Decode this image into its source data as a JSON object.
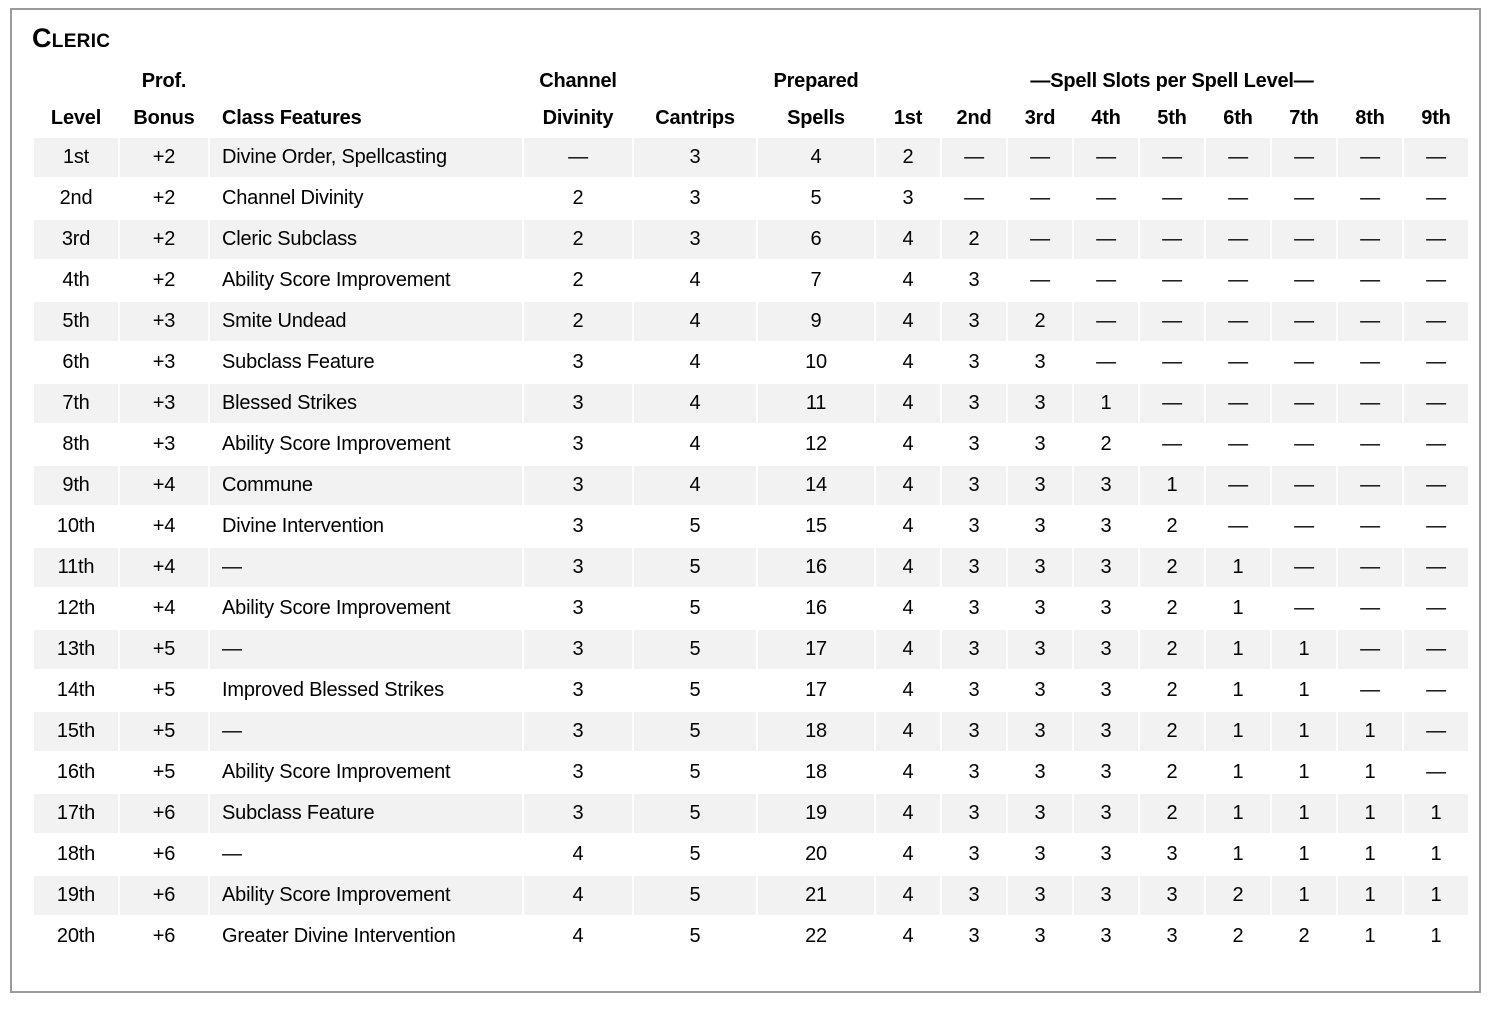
{
  "page": {
    "title": "Cleric"
  },
  "colors": {
    "stripe": "#f2f2f2",
    "frame_border": "#9b9b9b",
    "text": "#000000",
    "background": "#ffffff"
  },
  "table": {
    "header_row1": {
      "prof": "Prof.",
      "channel": "Channel",
      "prepared": "Prepared",
      "spell_slots_span": "—Spell Slots per Spell Level—"
    },
    "header_row2": [
      "Level",
      "Bonus",
      "Class Features",
      "Divinity",
      "Cantrips",
      "Spells",
      "1st",
      "2nd",
      "3rd",
      "4th",
      "5th",
      "6th",
      "7th",
      "8th",
      "9th"
    ],
    "rows": [
      [
        "1st",
        "+2",
        "Divine Order, Spellcasting",
        "—",
        "3",
        "4",
        "2",
        "—",
        "—",
        "—",
        "—",
        "—",
        "—",
        "—",
        "—"
      ],
      [
        "2nd",
        "+2",
        "Channel Divinity",
        "2",
        "3",
        "5",
        "3",
        "—",
        "—",
        "—",
        "—",
        "—",
        "—",
        "—",
        "—"
      ],
      [
        "3rd",
        "+2",
        "Cleric Subclass",
        "2",
        "3",
        "6",
        "4",
        "2",
        "—",
        "—",
        "—",
        "—",
        "—",
        "—",
        "—"
      ],
      [
        "4th",
        "+2",
        "Ability Score Improvement",
        "2",
        "4",
        "7",
        "4",
        "3",
        "—",
        "—",
        "—",
        "—",
        "—",
        "—",
        "—"
      ],
      [
        "5th",
        "+3",
        "Smite Undead",
        "2",
        "4",
        "9",
        "4",
        "3",
        "2",
        "—",
        "—",
        "—",
        "—",
        "—",
        "—"
      ],
      [
        "6th",
        "+3",
        "Subclass Feature",
        "3",
        "4",
        "10",
        "4",
        "3",
        "3",
        "—",
        "—",
        "—",
        "—",
        "—",
        "—"
      ],
      [
        "7th",
        "+3",
        "Blessed Strikes",
        "3",
        "4",
        "11",
        "4",
        "3",
        "3",
        "1",
        "—",
        "—",
        "—",
        "—",
        "—"
      ],
      [
        "8th",
        "+3",
        "Ability Score Improvement",
        "3",
        "4",
        "12",
        "4",
        "3",
        "3",
        "2",
        "—",
        "—",
        "—",
        "—",
        "—"
      ],
      [
        "9th",
        "+4",
        "Commune",
        "3",
        "4",
        "14",
        "4",
        "3",
        "3",
        "3",
        "1",
        "—",
        "—",
        "—",
        "—"
      ],
      [
        "10th",
        "+4",
        "Divine Intervention",
        "3",
        "5",
        "15",
        "4",
        "3",
        "3",
        "3",
        "2",
        "—",
        "—",
        "—",
        "—"
      ],
      [
        "11th",
        "+4",
        "—",
        "3",
        "5",
        "16",
        "4",
        "3",
        "3",
        "3",
        "2",
        "1",
        "—",
        "—",
        "—"
      ],
      [
        "12th",
        "+4",
        "Ability Score Improvement",
        "3",
        "5",
        "16",
        "4",
        "3",
        "3",
        "3",
        "2",
        "1",
        "—",
        "—",
        "—"
      ],
      [
        "13th",
        "+5",
        "—",
        "3",
        "5",
        "17",
        "4",
        "3",
        "3",
        "3",
        "2",
        "1",
        "1",
        "—",
        "—"
      ],
      [
        "14th",
        "+5",
        "Improved Blessed Strikes",
        "3",
        "5",
        "17",
        "4",
        "3",
        "3",
        "3",
        "2",
        "1",
        "1",
        "—",
        "—"
      ],
      [
        "15th",
        "+5",
        "—",
        "3",
        "5",
        "18",
        "4",
        "3",
        "3",
        "3",
        "2",
        "1",
        "1",
        "1",
        "—"
      ],
      [
        "16th",
        "+5",
        "Ability Score Improvement",
        "3",
        "5",
        "18",
        "4",
        "3",
        "3",
        "3",
        "2",
        "1",
        "1",
        "1",
        "—"
      ],
      [
        "17th",
        "+6",
        "Subclass Feature",
        "3",
        "5",
        "19",
        "4",
        "3",
        "3",
        "3",
        "2",
        "1",
        "1",
        "1",
        "1"
      ],
      [
        "18th",
        "+6",
        "—",
        "4",
        "5",
        "20",
        "4",
        "3",
        "3",
        "3",
        "3",
        "1",
        "1",
        "1",
        "1"
      ],
      [
        "19th",
        "+6",
        "Ability Score Improvement",
        "4",
        "5",
        "21",
        "4",
        "3",
        "3",
        "3",
        "3",
        "2",
        "1",
        "1",
        "1"
      ],
      [
        "20th",
        "+6",
        "Greater Divine Intervention",
        "4",
        "5",
        "22",
        "4",
        "3",
        "3",
        "3",
        "3",
        "2",
        "2",
        "1",
        "1"
      ]
    ]
  }
}
